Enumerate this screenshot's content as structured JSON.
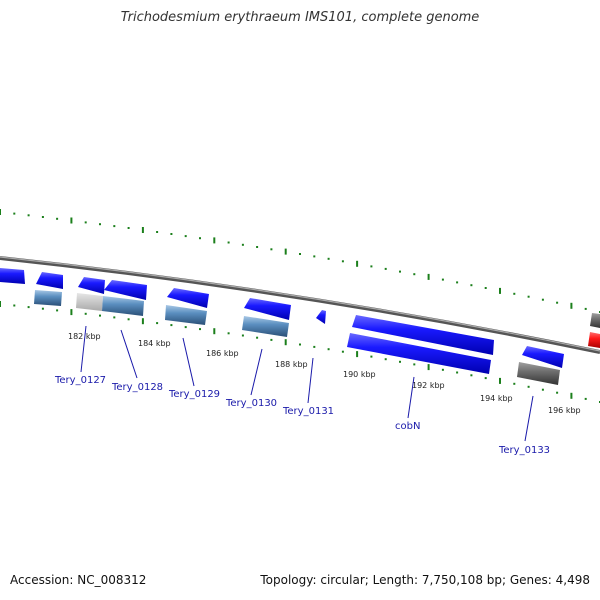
{
  "title": "Trichodesmium erythraeum IMS101, complete genome",
  "footer": {
    "accession": "Accession: NC_008312",
    "stats": "Topology: circular; Length: 7,750,108 bp; Genes: 4,498"
  },
  "kbp_labels": [
    "182 kbp",
    "184 kbp",
    "186 kbp",
    "188 kbp",
    "190 kbp",
    "192 kbp",
    "194 kbp",
    "196 kbp"
  ],
  "gene_labels": [
    "Tery_0127",
    "Tery_0128",
    "Tery_0129",
    "Tery_0130",
    "Tery_0131",
    "cobN",
    "Tery_0133"
  ],
  "colors": {
    "cds": "#1a1aff",
    "cds_dark": "#0000aa",
    "gene_light": "#5b8fc0",
    "gene_grey": "#666666",
    "gene_red": "#ff1a1a",
    "tick": "#1b7f1b",
    "backbone": "#888888",
    "label": "#1a1aaa"
  }
}
